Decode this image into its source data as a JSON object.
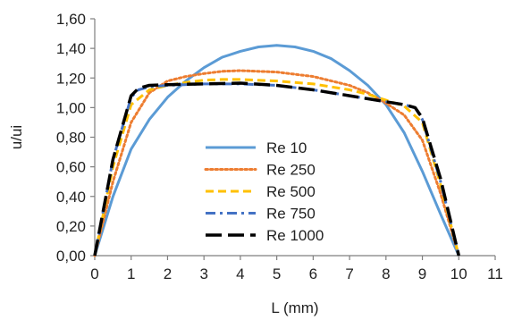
{
  "chart_data": {
    "type": "line",
    "title": "",
    "xlabel": "L (mm)",
    "ylabel": "u/ui",
    "xlim": [
      0,
      11
    ],
    "ylim": [
      0,
      1.6
    ],
    "x_ticks": [
      0,
      1,
      2,
      3,
      4,
      5,
      6,
      7,
      8,
      9,
      10,
      11
    ],
    "x_tick_labels": [
      "0",
      "1",
      "2",
      "3",
      "4",
      "5",
      "6",
      "7",
      "8",
      "9",
      "10",
      "11"
    ],
    "y_ticks": [
      0,
      0.2,
      0.4,
      0.6,
      0.8,
      1.0,
      1.2,
      1.4,
      1.6
    ],
    "y_tick_labels": [
      "0,00",
      "0,20",
      "0,40",
      "0,60",
      "0,80",
      "1,00",
      "1,20",
      "1,40",
      "1,60"
    ],
    "grid": false,
    "legend_position": "center-left",
    "series": [
      {
        "name": "Re 10",
        "color": "#5b9bd5",
        "dash": "solid",
        "x": [
          0,
          0.5,
          1,
          1.5,
          2,
          2.5,
          3,
          3.5,
          4,
          4.5,
          5,
          5.5,
          6,
          6.5,
          7,
          7.5,
          8,
          8.5,
          9,
          9.5,
          10
        ],
        "y": [
          0,
          0.4,
          0.72,
          0.92,
          1.07,
          1.18,
          1.27,
          1.34,
          1.38,
          1.41,
          1.42,
          1.41,
          1.38,
          1.33,
          1.25,
          1.15,
          1.02,
          0.83,
          0.57,
          0.28,
          0
        ]
      },
      {
        "name": "Re 250",
        "color": "#ed7d31",
        "dash": "dot",
        "x": [
          0,
          0.5,
          1,
          1.5,
          2,
          2.5,
          3,
          3.5,
          4,
          5,
          6,
          7,
          7.5,
          8,
          8.5,
          9,
          9.5,
          10
        ],
        "y": [
          0,
          0.5,
          0.9,
          1.1,
          1.18,
          1.21,
          1.23,
          1.245,
          1.25,
          1.24,
          1.21,
          1.15,
          1.1,
          1.03,
          0.95,
          0.78,
          0.42,
          0
        ]
      },
      {
        "name": "Re 500",
        "color": "#ffc000",
        "dash": "dash",
        "x": [
          0,
          0.5,
          1,
          1.5,
          2,
          2.5,
          3,
          3.5,
          4,
          5,
          6,
          7,
          7.5,
          8,
          8.5,
          9,
          9.5,
          10
        ],
        "y": [
          0,
          0.6,
          1.02,
          1.12,
          1.15,
          1.17,
          1.185,
          1.19,
          1.19,
          1.18,
          1.16,
          1.12,
          1.09,
          1.05,
          1.01,
          0.9,
          0.48,
          0
        ]
      },
      {
        "name": "Re 750",
        "color": "#4472c4",
        "dash": "dashdot",
        "x": [
          0,
          0.5,
          1,
          1.2,
          1.5,
          2,
          3,
          4,
          5,
          6,
          7,
          8,
          8.5,
          8.8,
          9,
          9.5,
          10
        ],
        "y": [
          0,
          0.65,
          1.07,
          1.12,
          1.14,
          1.15,
          1.16,
          1.16,
          1.15,
          1.12,
          1.08,
          1.04,
          1.02,
          1.0,
          0.92,
          0.5,
          0
        ]
      },
      {
        "name": "Re 1000",
        "color": "#000000",
        "dash": "longdash",
        "x": [
          0,
          0.5,
          1,
          1.2,
          1.5,
          2,
          3,
          4,
          5,
          6,
          7,
          8,
          8.5,
          8.8,
          9,
          9.5,
          10
        ],
        "y": [
          0,
          0.65,
          1.08,
          1.13,
          1.15,
          1.155,
          1.16,
          1.165,
          1.15,
          1.12,
          1.08,
          1.04,
          1.02,
          1.0,
          0.93,
          0.52,
          0
        ]
      }
    ]
  }
}
